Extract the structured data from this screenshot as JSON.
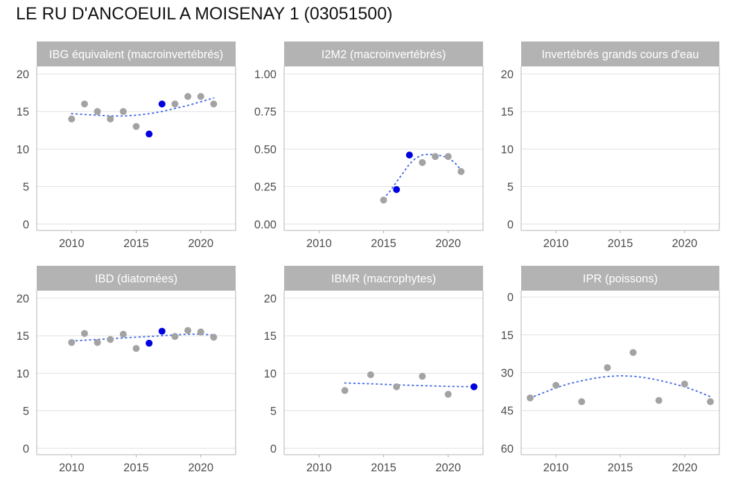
{
  "title": "LE RU D'ANCOEUIL A MOISENAY 1 (03051500)",
  "colors": {
    "strip": "#b3b3b3",
    "strip_text": "#ffffff",
    "grid": "#e0e0e0",
    "frame": "#b3b3b3",
    "point": "#a3a3a3",
    "highlight": "#0000e0",
    "trend": "#4a6fe8",
    "tick_text": "#4d4d4d"
  },
  "chart_data": [
    {
      "type": "scatter",
      "title": "IBG équivalent (macroinvertébrés)",
      "xlim": [
        2007.3,
        2022.7
      ],
      "ylim": [
        -0.85,
        21
      ],
      "x_ticks": [
        2010,
        2015,
        2020
      ],
      "x_tick_labels": [
        "2010",
        "2015",
        "2020"
      ],
      "y_ticks": [
        0,
        5,
        10,
        15,
        20
      ],
      "y_tick_labels": [
        "0",
        "5",
        "10",
        "15",
        "20"
      ],
      "y_reversed": false,
      "points": [
        {
          "x": 2010,
          "y": 14
        },
        {
          "x": 2011,
          "y": 16
        },
        {
          "x": 2012,
          "y": 15
        },
        {
          "x": 2013,
          "y": 14
        },
        {
          "x": 2014,
          "y": 15
        },
        {
          "x": 2015,
          "y": 13
        },
        {
          "x": 2016,
          "y": 12,
          "highlight": true
        },
        {
          "x": 2017,
          "y": 16,
          "highlight": true
        },
        {
          "x": 2018,
          "y": 16
        },
        {
          "x": 2019,
          "y": 17
        },
        {
          "x": 2020,
          "y": 17
        },
        {
          "x": 2021,
          "y": 16
        }
      ],
      "trend": [
        {
          "x": 2010,
          "y": 14.7
        },
        {
          "x": 2011,
          "y": 14.6
        },
        {
          "x": 2012,
          "y": 14.5
        },
        {
          "x": 2013,
          "y": 14.4
        },
        {
          "x": 2014,
          "y": 14.4
        },
        {
          "x": 2015,
          "y": 14.5
        },
        {
          "x": 2016,
          "y": 14.7
        },
        {
          "x": 2017,
          "y": 15.0
        },
        {
          "x": 2018,
          "y": 15.4
        },
        {
          "x": 2019,
          "y": 15.8
        },
        {
          "x": 2020,
          "y": 16.3
        },
        {
          "x": 2021,
          "y": 16.8
        }
      ],
      "grid": true
    },
    {
      "type": "scatter",
      "title": "I2M2 (macroinvertébrés)",
      "xlim": [
        2007.3,
        2022.7
      ],
      "ylim": [
        -0.0425,
        1.05
      ],
      "x_ticks": [
        2010,
        2015,
        2020
      ],
      "x_tick_labels": [
        "2010",
        "2015",
        "2020"
      ],
      "y_ticks": [
        0,
        0.25,
        0.5,
        0.75,
        1.0
      ],
      "y_tick_labels": [
        "0.00",
        "0.25",
        "0.50",
        "0.75",
        "1.00"
      ],
      "y_reversed": false,
      "points": [
        {
          "x": 2015,
          "y": 0.16
        },
        {
          "x": 2016,
          "y": 0.23,
          "highlight": true
        },
        {
          "x": 2017,
          "y": 0.46,
          "highlight": true
        },
        {
          "x": 2018,
          "y": 0.41
        },
        {
          "x": 2019,
          "y": 0.45
        },
        {
          "x": 2020,
          "y": 0.45
        },
        {
          "x": 2021,
          "y": 0.35
        }
      ],
      "trend": [
        {
          "x": 2015,
          "y": 0.17
        },
        {
          "x": 2015.5,
          "y": 0.22
        },
        {
          "x": 2016,
          "y": 0.28
        },
        {
          "x": 2016.5,
          "y": 0.34
        },
        {
          "x": 2017,
          "y": 0.4
        },
        {
          "x": 2017.5,
          "y": 0.44
        },
        {
          "x": 2018,
          "y": 0.46
        },
        {
          "x": 2018.5,
          "y": 0.465
        },
        {
          "x": 2019,
          "y": 0.46
        },
        {
          "x": 2019.5,
          "y": 0.455
        },
        {
          "x": 2020,
          "y": 0.44
        },
        {
          "x": 2020.5,
          "y": 0.41
        },
        {
          "x": 2021,
          "y": 0.36
        }
      ],
      "grid": true
    },
    {
      "type": "scatter",
      "title": "Invertébrés grands cours d'eau",
      "xlim": [
        2007.3,
        2022.7
      ],
      "ylim": [
        -0.85,
        21
      ],
      "x_ticks": [
        2010,
        2015,
        2020
      ],
      "x_tick_labels": [
        "2010",
        "2015",
        "2020"
      ],
      "y_ticks": [
        0,
        5,
        10,
        15,
        20
      ],
      "y_tick_labels": [
        "0",
        "5",
        "10",
        "15",
        "20"
      ],
      "y_reversed": false,
      "points": [],
      "trend": [],
      "grid": true
    },
    {
      "type": "scatter",
      "title": "IBD (diatomées)",
      "xlim": [
        2007.3,
        2022.7
      ],
      "ylim": [
        -0.85,
        21
      ],
      "x_ticks": [
        2010,
        2015,
        2020
      ],
      "x_tick_labels": [
        "2010",
        "2015",
        "2020"
      ],
      "y_ticks": [
        0,
        5,
        10,
        15,
        20
      ],
      "y_tick_labels": [
        "0",
        "5",
        "10",
        "15",
        "20"
      ],
      "y_reversed": false,
      "points": [
        {
          "x": 2010,
          "y": 14.1
        },
        {
          "x": 2011,
          "y": 15.3
        },
        {
          "x": 2012,
          "y": 14.1
        },
        {
          "x": 2013,
          "y": 14.5
        },
        {
          "x": 2014,
          "y": 15.2
        },
        {
          "x": 2015,
          "y": 13.3
        },
        {
          "x": 2016,
          "y": 14.0,
          "highlight": true
        },
        {
          "x": 2017,
          "y": 15.6,
          "highlight": true
        },
        {
          "x": 2018,
          "y": 14.9
        },
        {
          "x": 2019,
          "y": 15.7
        },
        {
          "x": 2020,
          "y": 15.5
        },
        {
          "x": 2021,
          "y": 14.8
        }
      ],
      "trend": [
        {
          "x": 2010,
          "y": 14.3
        },
        {
          "x": 2011,
          "y": 14.4
        },
        {
          "x": 2012,
          "y": 14.5
        },
        {
          "x": 2013,
          "y": 14.6
        },
        {
          "x": 2014,
          "y": 14.7
        },
        {
          "x": 2015,
          "y": 14.8
        },
        {
          "x": 2016,
          "y": 14.9
        },
        {
          "x": 2017,
          "y": 15.0
        },
        {
          "x": 2018,
          "y": 15.1
        },
        {
          "x": 2019,
          "y": 15.2
        },
        {
          "x": 2020,
          "y": 15.2
        },
        {
          "x": 2021,
          "y": 15.1
        }
      ],
      "grid": true
    },
    {
      "type": "scatter",
      "title": "IBMR (macrophytes)",
      "xlim": [
        2007.3,
        2022.7
      ],
      "ylim": [
        -0.85,
        21
      ],
      "x_ticks": [
        2010,
        2015,
        2020
      ],
      "x_tick_labels": [
        "2010",
        "2015",
        "2020"
      ],
      "y_ticks": [
        0,
        5,
        10,
        15,
        20
      ],
      "y_tick_labels": [
        "0",
        "5",
        "10",
        "15",
        "20"
      ],
      "y_reversed": false,
      "points": [
        {
          "x": 2012,
          "y": 7.7
        },
        {
          "x": 2014,
          "y": 9.8
        },
        {
          "x": 2016,
          "y": 8.2
        },
        {
          "x": 2018,
          "y": 9.6
        },
        {
          "x": 2020,
          "y": 7.2
        },
        {
          "x": 2022,
          "y": 8.2,
          "highlight": true
        }
      ],
      "trend": [
        {
          "x": 2012,
          "y": 8.7
        },
        {
          "x": 2014,
          "y": 8.6
        },
        {
          "x": 2016,
          "y": 8.45
        },
        {
          "x": 2018,
          "y": 8.35
        },
        {
          "x": 2020,
          "y": 8.25
        },
        {
          "x": 2022,
          "y": 8.2
        }
      ],
      "grid": true
    },
    {
      "type": "scatter",
      "title": "IPR (poissons)",
      "xlim": [
        2007.3,
        2022.7
      ],
      "ylim": [
        -2.5,
        62.5
      ],
      "x_ticks": [
        2010,
        2015,
        2020
      ],
      "x_tick_labels": [
        "2010",
        "2015",
        "2020"
      ],
      "y_ticks": [
        0,
        15,
        30,
        45,
        60
      ],
      "y_tick_labels": [
        "0",
        "15",
        "30",
        "45",
        "60"
      ],
      "y_reversed": true,
      "points": [
        {
          "x": 2008,
          "y": 40
        },
        {
          "x": 2010,
          "y": 35
        },
        {
          "x": 2012,
          "y": 41.5
        },
        {
          "x": 2014,
          "y": 28
        },
        {
          "x": 2016,
          "y": 22
        },
        {
          "x": 2018,
          "y": 41
        },
        {
          "x": 2020,
          "y": 34.5
        },
        {
          "x": 2022,
          "y": 41.5
        }
      ],
      "trend": [
        {
          "x": 2008,
          "y": 40
        },
        {
          "x": 2009,
          "y": 38
        },
        {
          "x": 2010,
          "y": 36
        },
        {
          "x": 2011,
          "y": 34.4
        },
        {
          "x": 2012,
          "y": 33.2
        },
        {
          "x": 2013,
          "y": 32.2
        },
        {
          "x": 2014,
          "y": 31.5
        },
        {
          "x": 2015,
          "y": 31.2
        },
        {
          "x": 2016,
          "y": 31.4
        },
        {
          "x": 2017,
          "y": 32.0
        },
        {
          "x": 2018,
          "y": 33.0
        },
        {
          "x": 2019,
          "y": 34.2
        },
        {
          "x": 2020,
          "y": 35.6
        },
        {
          "x": 2021,
          "y": 37.4
        },
        {
          "x": 2022,
          "y": 39.5
        }
      ],
      "grid": true
    }
  ]
}
